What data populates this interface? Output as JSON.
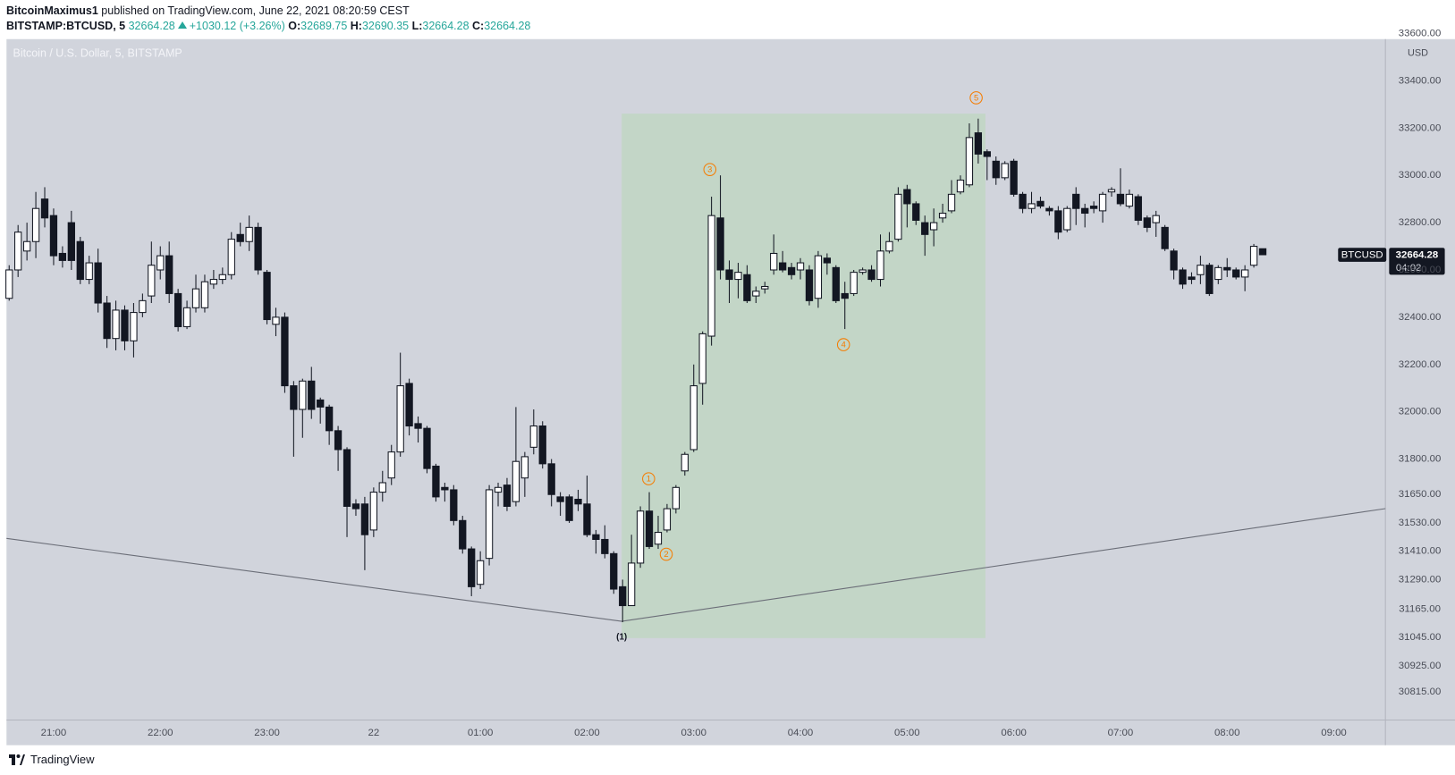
{
  "chart_data": {
    "type": "candlestick",
    "title": "Bitcoin / U.S. Dollar, 5, BITSTAMP",
    "author": "BitcoinMaximus1",
    "published": "published on TradingView.com, June 22, 2021 08:20:59 CEST",
    "symbol": "BITSTAMP:BTCUSD, 5",
    "change": "+1030.12 (+3.26%)",
    "ohlc_labels": [
      "O:",
      "H:",
      "L:",
      "C:"
    ],
    "countdown": "04:02",
    "y_unit": "USD",
    "brand": "TradingView",
    "wave_labels": [
      "1",
      "2",
      "3",
      "4",
      "5",
      "(1)"
    ],
    "wave_color": "#f57c00",
    "up_color": "#ffffff",
    "down_color": "#131722",
    "series": [
      {
        "name": "BTCUSD",
        "open": [
          32480,
          32600,
          32680,
          32720,
          32900,
          32830,
          32670,
          32800,
          32720,
          32560,
          32630,
          32460,
          32310,
          32430,
          32300,
          32420,
          32490,
          32600,
          32660,
          32500,
          32360,
          32440,
          32440,
          32540,
          32560,
          32580,
          32750,
          32720,
          32780,
          32590,
          32370,
          32400,
          32110,
          32010,
          32130,
          32050,
          32020,
          31920,
          31840,
          31610,
          31610,
          31500,
          31660,
          31720,
          31830,
          32120,
          31950,
          31930,
          31770,
          31680,
          31670,
          31540,
          31420,
          31270,
          31380,
          31660,
          31690,
          31620,
          31720,
          31850,
          31940,
          31780,
          31640,
          31640,
          31630,
          31610,
          31480,
          31460,
          31400,
          31260,
          31180,
          31360,
          31580,
          31440,
          31500,
          31590,
          31750,
          31840,
          32120,
          32320,
          32820,
          32600,
          32560,
          32580,
          32490,
          32520,
          32600,
          32630,
          32610,
          32600,
          32600,
          32480,
          32650,
          32610,
          32500,
          32500,
          32590,
          32600,
          32560,
          32680,
          32730,
          32940,
          32880,
          32800,
          32770,
          32820,
          32850,
          32930,
          32960,
          33180,
          33100,
          33060,
          32990,
          33060,
          32920,
          32860,
          32890,
          32860,
          32850,
          32770,
          32920,
          32860,
          32870,
          32850,
          32930,
          32920,
          32870,
          32910,
          32820,
          32800,
          32780,
          32680,
          32600,
          32570,
          32580,
          32620,
          32560,
          32610,
          32600,
          32570,
          32620,
          32689.75
        ],
        "high": [
          32620,
          32790,
          32800,
          32930,
          32950,
          32860,
          32700,
          32850,
          32740,
          32660,
          32690,
          32490,
          32470,
          32450,
          32460,
          32500,
          32720,
          32700,
          32720,
          32520,
          32470,
          32580,
          32580,
          32600,
          32610,
          32760,
          32800,
          32830,
          32800,
          32600,
          32440,
          32420,
          32130,
          32140,
          32190,
          32060,
          32030,
          31940,
          31850,
          31630,
          31640,
          31680,
          31750,
          31860,
          32250,
          32140,
          31980,
          31940,
          31780,
          31700,
          31690,
          31560,
          31430,
          31410,
          31690,
          31700,
          31720,
          32020,
          31830,
          32010,
          31960,
          31800,
          31660,
          31650,
          31670,
          31730,
          31500,
          31520,
          31410,
          31290,
          31480,
          31600,
          31660,
          31560,
          31610,
          31690,
          31830,
          32200,
          32340,
          32910,
          33000,
          32640,
          32630,
          32620,
          32530,
          32550,
          32750,
          32680,
          32630,
          32650,
          32620,
          32680,
          32670,
          32620,
          32550,
          32600,
          32610,
          32620,
          32750,
          32760,
          32950,
          32960,
          32890,
          32830,
          32860,
          32880,
          32980,
          33000,
          33220,
          33240,
          33110,
          33080,
          33060,
          33070,
          32930,
          32930,
          32910,
          32870,
          32870,
          32870,
          32950,
          32880,
          32890,
          32930,
          32950,
          33030,
          32940,
          32920,
          32830,
          32850,
          32790,
          32690,
          32610,
          32590,
          32660,
          32630,
          32620,
          32650,
          32610,
          32620,
          32710,
          32690.35
        ],
        "low": [
          32470,
          32570,
          32640,
          32650,
          32780,
          32620,
          32610,
          32600,
          32540,
          32540,
          32420,
          32270,
          32260,
          32260,
          32230,
          32400,
          32460,
          32560,
          32460,
          32340,
          32350,
          32420,
          32420,
          32520,
          32540,
          32560,
          32700,
          32680,
          32580,
          32370,
          32320,
          32080,
          31810,
          31890,
          31970,
          31950,
          31860,
          31750,
          31470,
          31560,
          31330,
          31470,
          31620,
          31690,
          31810,
          31900,
          31870,
          31740,
          31620,
          31620,
          31520,
          31400,
          31220,
          31250,
          31350,
          31600,
          31580,
          31600,
          31640,
          31820,
          31760,
          31600,
          31560,
          31530,
          31580,
          31470,
          31400,
          31380,
          31230,
          31110,
          31180,
          31340,
          31420,
          31420,
          31490,
          31570,
          31730,
          31830,
          32030,
          32280,
          32560,
          32460,
          32480,
          32460,
          32460,
          32500,
          32580,
          32590,
          32560,
          32560,
          32450,
          32440,
          32580,
          32460,
          32350,
          32490,
          32580,
          32550,
          32530,
          32670,
          32720,
          32780,
          32790,
          32660,
          32700,
          32800,
          32840,
          32920,
          32950,
          33050,
          32980,
          32960,
          32980,
          32910,
          32840,
          32840,
          32860,
          32830,
          32730,
          32760,
          32790,
          32780,
          32840,
          32800,
          32910,
          32870,
          32860,
          32790,
          32760,
          32740,
          32680,
          32560,
          32520,
          32540,
          32540,
          32490,
          32540,
          32570,
          32560,
          32510,
          32610,
          32664.28
        ],
        "close": [
          32600,
          32760,
          32720,
          32860,
          32820,
          32660,
          32640,
          32640,
          32560,
          32630,
          32460,
          32310,
          32430,
          32300,
          32420,
          32470,
          32620,
          32660,
          32500,
          32360,
          32440,
          32520,
          32550,
          32560,
          32580,
          32730,
          32720,
          32780,
          32600,
          32390,
          32400,
          32110,
          32010,
          32130,
          32010,
          32020,
          31920,
          31840,
          31600,
          31590,
          31480,
          31660,
          31700,
          31830,
          32110,
          31940,
          31930,
          31760,
          31640,
          31670,
          31540,
          31420,
          31260,
          31370,
          31670,
          31680,
          31600,
          31790,
          31810,
          31940,
          31780,
          31650,
          31620,
          31540,
          31610,
          31480,
          31460,
          31400,
          31250,
          31180,
          31360,
          31580,
          31430,
          31490,
          31590,
          31680,
          31820,
          32110,
          32330,
          32830,
          32600,
          32560,
          32590,
          32470,
          32510,
          32530,
          32670,
          32600,
          32580,
          32630,
          32470,
          32660,
          32630,
          32470,
          32480,
          32590,
          32600,
          32560,
          32680,
          32720,
          32920,
          32880,
          32810,
          32750,
          32800,
          32840,
          32920,
          32980,
          33160,
          33090,
          33080,
          32990,
          33050,
          32920,
          32860,
          32880,
          32870,
          32850,
          32760,
          32860,
          32860,
          32840,
          32860,
          32920,
          32940,
          32880,
          32920,
          32810,
          32780,
          32830,
          32690,
          32600,
          32540,
          32560,
          32620,
          32500,
          32610,
          32600,
          32570,
          32600,
          32700,
          32664.28
        ]
      }
    ],
    "xlim": [
      -0.3,
      154.8
    ],
    "xticks": [
      {
        "value": 5,
        "label": "21:00"
      },
      {
        "value": 17,
        "label": "22:00"
      },
      {
        "value": 29,
        "label": "23:00"
      },
      {
        "value": 41,
        "label": "22"
      },
      {
        "value": 53,
        "label": "01:00"
      },
      {
        "value": 65,
        "label": "02:00"
      },
      {
        "value": 77,
        "label": "03:00"
      },
      {
        "value": 89,
        "label": "04:00"
      },
      {
        "value": 101,
        "label": "05:00"
      },
      {
        "value": 113,
        "label": "06:00"
      },
      {
        "value": 125,
        "label": "07:00"
      },
      {
        "value": 137,
        "label": "08:00"
      },
      {
        "value": 149,
        "label": "09:00"
      }
    ],
    "ylim": [
      30700,
      33600
    ],
    "yticks": [
      {
        "value": 33600,
        "label": "33600.00"
      },
      {
        "value": 33400,
        "label": "33400.00"
      },
      {
        "value": 33200,
        "label": "33200.00"
      },
      {
        "value": 33000,
        "label": "33000.00"
      },
      {
        "value": 32800,
        "label": "32800.00"
      },
      {
        "value": 32600,
        "label": "32600.00"
      },
      {
        "value": 32400,
        "label": "32400.00"
      },
      {
        "value": 32200,
        "label": "32200.00"
      },
      {
        "value": 32000,
        "label": "32000.00"
      },
      {
        "value": 31800,
        "label": "31800.00"
      },
      {
        "value": 31650,
        "label": "31650.00"
      },
      {
        "value": 31530,
        "label": "31530.00"
      },
      {
        "value": 31410,
        "label": "31410.00"
      },
      {
        "value": 31290,
        "label": "31290.00"
      },
      {
        "value": 31165,
        "label": "31165.00"
      },
      {
        "value": 31045,
        "label": "31045.00"
      },
      {
        "value": 30925,
        "label": "30925.00"
      },
      {
        "value": 30815,
        "label": "30815.00"
      }
    ],
    "grid": false
  }
}
